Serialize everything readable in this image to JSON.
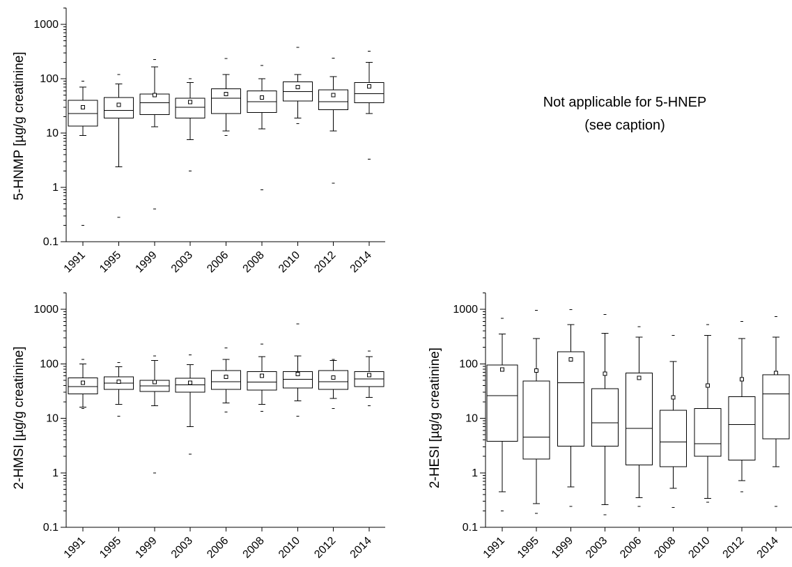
{
  "figure_note": {
    "line1": "Not applicable for 5-HNEP",
    "line2": "(see caption)"
  },
  "chart_data": [
    {
      "type": "box",
      "panel": "top-left",
      "ylabel": "5-HNMP [µg/g creatinine]",
      "yscale": "log",
      "ylim": [
        0.1,
        2000
      ],
      "yticks": [
        0.1,
        1,
        10,
        100,
        1000
      ],
      "ytick_labels": [
        "0.1",
        "1",
        "10",
        "100",
        "1000"
      ],
      "categories": [
        "1991",
        "1995",
        "1999",
        "2003",
        "2006",
        "2008",
        "2010",
        "2012",
        "2014"
      ],
      "boxes": [
        {
          "q1": 13.5,
          "median": 23,
          "q3": 40,
          "mean": 30,
          "whisker_low": 9,
          "whisker_high": 70,
          "extreme_min": 0.2,
          "extreme_max": 90
        },
        {
          "q1": 19,
          "median": 26,
          "q3": 45,
          "mean": 33,
          "whisker_low": 2.4,
          "whisker_high": 80,
          "extreme_min": 0.28,
          "extreme_max": 120
        },
        {
          "q1": 22,
          "median": 36,
          "q3": 52,
          "mean": 50,
          "whisker_low": 13,
          "whisker_high": 165,
          "extreme_min": 0.4,
          "extreme_max": 225
        },
        {
          "q1": 19,
          "median": 30,
          "q3": 44,
          "mean": 37,
          "whisker_low": 7.5,
          "whisker_high": 85,
          "extreme_min": 2,
          "extreme_max": 100
        },
        {
          "q1": 23,
          "median": 44,
          "q3": 65,
          "mean": 52,
          "whisker_low": 11,
          "whisker_high": 120,
          "extreme_min": 9,
          "extreme_max": 235
        },
        {
          "q1": 24,
          "median": 38,
          "q3": 60,
          "mean": 45,
          "whisker_low": 12,
          "whisker_high": 100,
          "extreme_min": 0.9,
          "extreme_max": 175
        },
        {
          "q1": 39,
          "median": 58,
          "q3": 87,
          "mean": 70,
          "whisker_low": 19,
          "whisker_high": 120,
          "extreme_min": 15,
          "extreme_max": 380
        },
        {
          "q1": 27,
          "median": 38,
          "q3": 62,
          "mean": 50,
          "whisker_low": 11,
          "whisker_high": 110,
          "extreme_min": 1.2,
          "extreme_max": 240
        },
        {
          "q1": 36,
          "median": 53,
          "q3": 85,
          "mean": 72,
          "whisker_low": 23,
          "whisker_high": 200,
          "extreme_min": 3.3,
          "extreme_max": 320
        }
      ]
    },
    {
      "type": "box",
      "panel": "bottom-left",
      "ylabel": "2-HMSI [µg/g creatinine]",
      "yscale": "log",
      "ylim": [
        0.1,
        2000
      ],
      "yticks": [
        0.1,
        1,
        10,
        100,
        1000
      ],
      "ytick_labels": [
        "0.1",
        "1",
        "10",
        "100",
        "1000"
      ],
      "categories": [
        "1991",
        "1995",
        "1999",
        "2003",
        "2006",
        "2008",
        "2010",
        "2012",
        "2014"
      ],
      "boxes": [
        {
          "q1": 28,
          "median": 38,
          "q3": 55,
          "mean": 45,
          "whisker_low": 16,
          "whisker_high": 100,
          "extreme_min": 15,
          "extreme_max": 120
        },
        {
          "q1": 34,
          "median": 44,
          "q3": 58,
          "mean": 47,
          "whisker_low": 18,
          "whisker_high": 88,
          "extreme_min": 11,
          "extreme_max": 105
        },
        {
          "q1": 31,
          "median": 39,
          "q3": 50,
          "mean": 46,
          "whisker_low": 17,
          "whisker_high": 115,
          "extreme_min": 1,
          "extreme_max": 140
        },
        {
          "q1": 30,
          "median": 41,
          "q3": 54,
          "mean": 45,
          "whisker_low": 7,
          "whisker_high": 97,
          "extreme_min": 2.2,
          "extreme_max": 145
        },
        {
          "q1": 34,
          "median": 47,
          "q3": 75,
          "mean": 58,
          "whisker_low": 19,
          "whisker_high": 120,
          "extreme_min": 13,
          "extreme_max": 195
        },
        {
          "q1": 33,
          "median": 46,
          "q3": 72,
          "mean": 60,
          "whisker_low": 18,
          "whisker_high": 135,
          "extreme_min": 13.5,
          "extreme_max": 230
        },
        {
          "q1": 36,
          "median": 52,
          "q3": 72,
          "mean": 65,
          "whisker_low": 21,
          "whisker_high": 140,
          "extreme_min": 11,
          "extreme_max": 540
        },
        {
          "q1": 34,
          "median": 47,
          "q3": 75,
          "mean": 56,
          "whisker_low": 23,
          "whisker_high": 115,
          "extreme_min": 15,
          "extreme_max": 120
        },
        {
          "q1": 38,
          "median": 53,
          "q3": 72,
          "mean": 62,
          "whisker_low": 24,
          "whisker_high": 135,
          "extreme_min": 17,
          "extreme_max": 170
        }
      ]
    },
    {
      "type": "box",
      "panel": "bottom-right",
      "ylabel": "2-HESI [µg/g creatinine]",
      "yscale": "log",
      "ylim": [
        0.1,
        2000
      ],
      "yticks": [
        0.1,
        1,
        10,
        100,
        1000
      ],
      "ytick_labels": [
        "0.1",
        "1",
        "10",
        "100",
        "1000"
      ],
      "categories": [
        "1991",
        "1995",
        "1999",
        "2003",
        "2006",
        "2008",
        "2010",
        "2012",
        "2014"
      ],
      "boxes": [
        {
          "q1": 3.8,
          "median": 26,
          "q3": 95,
          "mean": 78,
          "whisker_low": 0.45,
          "whisker_high": 350,
          "extreme_min": 0.2,
          "extreme_max": 680
        },
        {
          "q1": 1.8,
          "median": 4.5,
          "q3": 48,
          "mean": 75,
          "whisker_low": 0.27,
          "whisker_high": 290,
          "extreme_min": 0.18,
          "extreme_max": 960
        },
        {
          "q1": 3.1,
          "median": 45,
          "q3": 165,
          "mean": 120,
          "whisker_low": 0.55,
          "whisker_high": 520,
          "extreme_min": 0.24,
          "extreme_max": 980
        },
        {
          "q1": 3.1,
          "median": 8.2,
          "q3": 35,
          "mean": 66,
          "whisker_low": 0.26,
          "whisker_high": 360,
          "extreme_min": 0.17,
          "extreme_max": 800
        },
        {
          "q1": 1.4,
          "median": 6.5,
          "q3": 68,
          "mean": 55,
          "whisker_low": 0.35,
          "whisker_high": 310,
          "extreme_min": 0.24,
          "extreme_max": 480
        },
        {
          "q1": 1.3,
          "median": 3.7,
          "q3": 14,
          "mean": 24,
          "whisker_low": 0.52,
          "whisker_high": 110,
          "extreme_min": 0.23,
          "extreme_max": 330
        },
        {
          "q1": 2,
          "median": 3.4,
          "q3": 15,
          "mean": 40,
          "whisker_low": 0.34,
          "whisker_high": 330,
          "extreme_min": 0.29,
          "extreme_max": 520
        },
        {
          "q1": 1.7,
          "median": 7.7,
          "q3": 25,
          "mean": 52,
          "whisker_low": 0.72,
          "whisker_high": 290,
          "extreme_min": 0.45,
          "extreme_max": 600
        },
        {
          "q1": 4.2,
          "median": 28,
          "q3": 63,
          "mean": 68,
          "whisker_low": 1.3,
          "whisker_high": 310,
          "extreme_min": 0.24,
          "extreme_max": 730
        }
      ]
    }
  ]
}
